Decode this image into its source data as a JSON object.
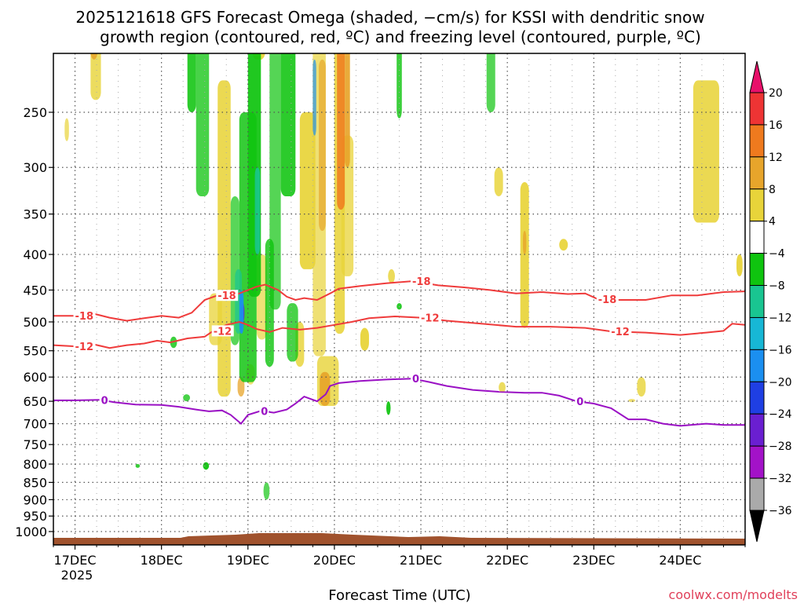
{
  "chart_data": {
    "type": "heatmap",
    "title_line1": "2025121618 GFS Forecast Omega (shaded, −cm/s) for KSSI with dendritic snow",
    "title_line2": "growth region (contoured, red, ºC) and freezing level (contoured, purple, ºC)",
    "xlabel": "Forecast Time (UTC)",
    "credit": "coolwx.com/modelts",
    "x_ticks": [
      "17DEC",
      "18DEC",
      "19DEC",
      "20DEC",
      "21DEC",
      "22DEC",
      "23DEC",
      "24DEC"
    ],
    "x_tick_year": "2025",
    "x_range_days": [
      16.75,
      24.75
    ],
    "y_ticks": [
      "250",
      "300",
      "350",
      "400",
      "450",
      "500",
      "550",
      "600",
      "650",
      "700",
      "750",
      "800",
      "850",
      "900",
      "950",
      "1000"
    ],
    "y_range_hpa": [
      200,
      1050
    ],
    "y_scale": "log",
    "grid": true,
    "colorbar": {
      "labels": [
        "20",
        "16",
        "12",
        "8",
        "4",
        "−4",
        "−8",
        "−12",
        "−16",
        "−20",
        "−24",
        "−28",
        "−32",
        "−36"
      ],
      "colors": [
        "#e8106a",
        "#ee3434",
        "#ef7a1e",
        "#e7a52b",
        "#e8d43a",
        "#ffffff",
        "#0fc40f",
        "#19c591",
        "#17b7d5",
        "#1b8ff0",
        "#1f3fe3",
        "#6a1fd1",
        "#a312c8",
        "#aaaaaa",
        "#000000"
      ]
    },
    "contours": [
      {
        "label": "-18",
        "color": "#ef3b3b",
        "points": [
          [
            16.75,
            490
          ],
          [
            17.0,
            490
          ],
          [
            17.2,
            486
          ],
          [
            17.4,
            493
          ],
          [
            17.6,
            498
          ],
          [
            17.8,
            494
          ],
          [
            18.0,
            490
          ],
          [
            18.2,
            493
          ],
          [
            18.35,
            485
          ],
          [
            18.5,
            465
          ],
          [
            18.65,
            458
          ],
          [
            18.8,
            460
          ],
          [
            18.9,
            455
          ],
          [
            19.0,
            450
          ],
          [
            19.1,
            445
          ],
          [
            19.2,
            442
          ],
          [
            19.35,
            450
          ],
          [
            19.45,
            460
          ],
          [
            19.55,
            465
          ],
          [
            19.65,
            462
          ],
          [
            19.8,
            465
          ],
          [
            19.95,
            455
          ],
          [
            20.05,
            448
          ],
          [
            20.3,
            444
          ],
          [
            20.6,
            440
          ],
          [
            20.9,
            437
          ],
          [
            21.2,
            443
          ],
          [
            21.5,
            446
          ],
          [
            21.8,
            450
          ],
          [
            22.1,
            455
          ],
          [
            22.4,
            453
          ],
          [
            22.7,
            456
          ],
          [
            22.9,
            455
          ],
          [
            23.05,
            464
          ],
          [
            23.3,
            465
          ],
          [
            23.6,
            465
          ],
          [
            23.9,
            458
          ],
          [
            24.2,
            458
          ],
          [
            24.5,
            453
          ],
          [
            24.75,
            452
          ]
        ]
      },
      {
        "label": "-12",
        "color": "#ef3b3b",
        "points": [
          [
            16.75,
            540
          ],
          [
            17.0,
            542
          ],
          [
            17.2,
            538
          ],
          [
            17.4,
            545
          ],
          [
            17.6,
            540
          ],
          [
            17.8,
            537
          ],
          [
            17.95,
            532
          ],
          [
            18.1,
            535
          ],
          [
            18.3,
            528
          ],
          [
            18.5,
            525
          ],
          [
            18.6,
            515
          ],
          [
            18.75,
            505
          ],
          [
            18.9,
            500
          ],
          [
            19.0,
            505
          ],
          [
            19.1,
            512
          ],
          [
            19.25,
            517
          ],
          [
            19.4,
            510
          ],
          [
            19.6,
            513
          ],
          [
            19.8,
            510
          ],
          [
            20.0,
            505
          ],
          [
            20.2,
            500
          ],
          [
            20.4,
            494
          ],
          [
            20.7,
            491
          ],
          [
            21.0,
            493
          ],
          [
            21.3,
            498
          ],
          [
            21.7,
            503
          ],
          [
            22.1,
            508
          ],
          [
            22.5,
            508
          ],
          [
            22.9,
            510
          ],
          [
            23.2,
            516
          ],
          [
            23.6,
            518
          ],
          [
            24.0,
            522
          ],
          [
            24.3,
            518
          ],
          [
            24.5,
            515
          ],
          [
            24.6,
            503
          ],
          [
            24.75,
            505
          ]
        ]
      },
      {
        "label": "0",
        "color": "#9a10c4",
        "points": [
          [
            16.75,
            648
          ],
          [
            17.0,
            648
          ],
          [
            17.3,
            647
          ],
          [
            17.45,
            652
          ],
          [
            17.7,
            657
          ],
          [
            18.0,
            658
          ],
          [
            18.2,
            662
          ],
          [
            18.4,
            668
          ],
          [
            18.55,
            672
          ],
          [
            18.7,
            670
          ],
          [
            18.8,
            680
          ],
          [
            18.92,
            700
          ],
          [
            19.0,
            680
          ],
          [
            19.15,
            671
          ],
          [
            19.3,
            675
          ],
          [
            19.45,
            668
          ],
          [
            19.55,
            655
          ],
          [
            19.65,
            640
          ],
          [
            19.8,
            650
          ],
          [
            19.9,
            635
          ],
          [
            19.95,
            618
          ],
          [
            20.05,
            612
          ],
          [
            20.3,
            608
          ],
          [
            20.6,
            605
          ],
          [
            20.9,
            603
          ],
          [
            21.1,
            610
          ],
          [
            21.3,
            618
          ],
          [
            21.6,
            626
          ],
          [
            21.9,
            630
          ],
          [
            22.2,
            632
          ],
          [
            22.4,
            632
          ],
          [
            22.6,
            638
          ],
          [
            22.8,
            650
          ],
          [
            23.0,
            655
          ],
          [
            23.2,
            665
          ],
          [
            23.4,
            690
          ],
          [
            23.6,
            690
          ],
          [
            23.8,
            700
          ],
          [
            24.0,
            705
          ],
          [
            24.3,
            700
          ],
          [
            24.5,
            703
          ],
          [
            24.75,
            703
          ]
        ]
      }
    ]
  }
}
